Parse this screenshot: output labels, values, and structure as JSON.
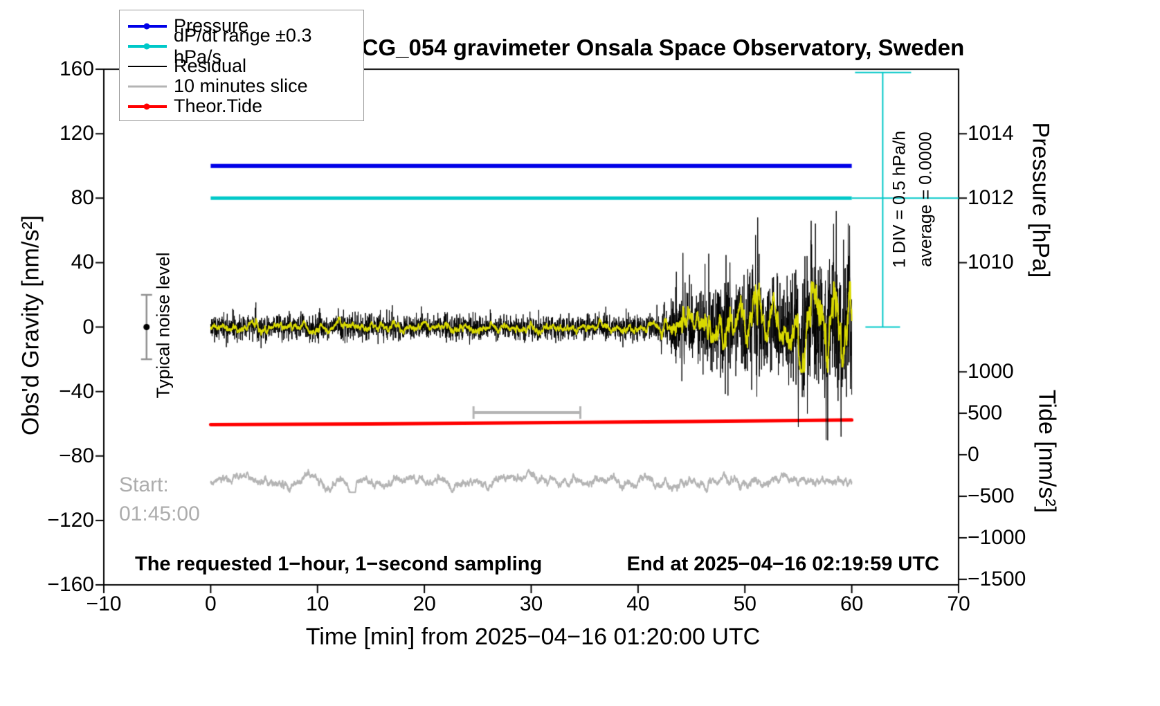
{
  "title": "SCG_054 gravimeter Onsala Space Observatory, Sweden",
  "legend": {
    "items": [
      {
        "label": "Pressure",
        "color": "#0000e8",
        "marker": true,
        "line_width": 4
      },
      {
        "label": "dP/dt range ±0.3 hPa/s",
        "color": "#00c8c8",
        "marker": true,
        "line_width": 4
      },
      {
        "label": "Residual",
        "color": "#000000",
        "marker": false,
        "line_width": 2
      },
      {
        "label": "10 minutes slice",
        "color": "#b4b4b4",
        "marker": false,
        "line_width": 3
      },
      {
        "label": "Theor.Tide",
        "color": "#ff0000",
        "marker": true,
        "line_width": 4
      }
    ]
  },
  "axes": {
    "x": {
      "label": "Time [min] from 2025−04−16 01:20:00 UTC",
      "min": -10,
      "max": 70,
      "ticks": [
        {
          "v": -10,
          "label": "−10"
        },
        {
          "v": 0,
          "label": "0"
        },
        {
          "v": 10,
          "label": "10"
        },
        {
          "v": 20,
          "label": "20"
        },
        {
          "v": 30,
          "label": "30"
        },
        {
          "v": 40,
          "label": "40"
        },
        {
          "v": 50,
          "label": "50"
        },
        {
          "v": 60,
          "label": "60"
        },
        {
          "v": 70,
          "label": "70"
        }
      ]
    },
    "y_gravity": {
      "label": "Obs'd Gravity [nm/s²]",
      "min": -160,
      "max": 160,
      "ticks": [
        {
          "v": 160,
          "label": "160"
        },
        {
          "v": 120,
          "label": "120"
        },
        {
          "v": 80,
          "label": "80"
        },
        {
          "v": 40,
          "label": "40"
        },
        {
          "v": 0,
          "label": "0"
        },
        {
          "v": -40,
          "label": "−40"
        },
        {
          "v": -80,
          "label": "−80"
        },
        {
          "v": -120,
          "label": "−120"
        },
        {
          "v": -160,
          "label": "−160"
        }
      ]
    },
    "y_pressure": {
      "label": "Pressure [hPa]",
      "anchor_hpa": 1012,
      "anchor_gravity": 80,
      "gravity_per_hpa": 20,
      "ticks": [
        {
          "v": 1014,
          "label": "1014"
        },
        {
          "v": 1012,
          "label": "1012"
        },
        {
          "v": 1010,
          "label": "1010"
        }
      ]
    },
    "y_tide": {
      "label": "Tide [nm/s²]",
      "anchor_tide": 0,
      "anchor_gravity": -79.3,
      "gravity_per_unit": 0.05154,
      "ticks": [
        {
          "v": 1000,
          "label": "1000"
        },
        {
          "v": 500,
          "label": "500"
        },
        {
          "v": 0,
          "label": "0"
        },
        {
          "v": -500,
          "label": "−500"
        },
        {
          "v": -1000,
          "label": "−1000"
        },
        {
          "v": -1500,
          "label": "−1500"
        }
      ]
    }
  },
  "annotations": {
    "typical_noise_level": "Typical noise level",
    "start_label": "Start:",
    "start_time": "01:45:00",
    "bottom_left": "The requested 1−hour, 1−second sampling",
    "bottom_right": "End at 2025−04−16 02:19:59 UTC",
    "div_scale": "1 DIV = 0.5 hPa/h",
    "average": "average = 0.0000"
  },
  "chart_data": {
    "type": "line",
    "title": "SCG_054 gravimeter Onsala Space Observatory, Sweden",
    "x": {
      "label": "Time [min] from 2025−04−16 01:20:00 UTC",
      "range": [
        -10,
        70
      ],
      "series_span_min": [
        0,
        60
      ],
      "sampling_seconds": 1
    },
    "y_gravity_range": [
      -160,
      160
    ],
    "grid": false,
    "legend_position": "top-left",
    "series": [
      {
        "name": "Pressure",
        "color": "#0000e8",
        "type": "constant",
        "gravity_level": 100,
        "pressure_hpa": 1013.0,
        "x_span": [
          0,
          60
        ],
        "width": 6
      },
      {
        "name": "dP/dt range ±0.3 hPa/s",
        "color": "#00c8c8",
        "type": "constant",
        "gravity_level": 80,
        "pressure_hpa": 1012.0,
        "x_span": [
          0,
          60
        ],
        "width": 5
      },
      {
        "name": "Residual",
        "color": "#000000",
        "type": "noise",
        "mean": 0,
        "width": 1,
        "sigma_envelope": [
          [
            0,
            3.8
          ],
          [
            41.5,
            3.8
          ],
          [
            43,
            7
          ],
          [
            44,
            16
          ],
          [
            45,
            13
          ],
          [
            46,
            12
          ],
          [
            47,
            15
          ],
          [
            48.5,
            16
          ],
          [
            50,
            14
          ],
          [
            51,
            18
          ],
          [
            52,
            15
          ],
          [
            54,
            16
          ],
          [
            55,
            20
          ],
          [
            56,
            22
          ],
          [
            57,
            22
          ],
          [
            58,
            24
          ],
          [
            59,
            23
          ],
          [
            60,
            22
          ]
        ],
        "notable_spikes": [
          [
            44.2,
            46
          ],
          [
            48.6,
            40
          ],
          [
            51.2,
            68
          ],
          [
            55.0,
            -62
          ],
          [
            56.2,
            66
          ],
          [
            57.6,
            -70
          ],
          [
            58.3,
            64
          ],
          [
            59.0,
            -68
          ],
          [
            59.8,
            63
          ]
        ]
      },
      {
        "name": "Smoothed residual",
        "color": "#d9d900",
        "type": "smoothed-noise",
        "width": 2,
        "gain": 2.6
      },
      {
        "name": "Theor.Tide",
        "color": "#ff0000",
        "type": "polyline",
        "width": 5,
        "points_gravity": [
          [
            0,
            -60.6
          ],
          [
            15,
            -60.1
          ],
          [
            30,
            -59.4
          ],
          [
            45,
            -58.6
          ],
          [
            60,
            -57.7
          ]
        ],
        "tide_right_axis_values": [
          360,
          420
        ]
      },
      {
        "name": "10 minutes slice",
        "color": "#b4b4b4",
        "type": "smooth-wiggle",
        "baseline_gravity": -95.5,
        "sigma": 2.3,
        "x_span": [
          0,
          60
        ],
        "width": 2
      }
    ],
    "markers": {
      "typical_noise_level_bar": {
        "x_min": -6.0,
        "gravity_span": [
          -20,
          20
        ],
        "dot_at": 0,
        "color": "#919191"
      },
      "slice_duration_bar": {
        "x_span": [
          24.6,
          34.6
        ],
        "gravity_level": -53,
        "color": "#b4b4b4"
      },
      "div_scale_bar": {
        "x_min": 62.9,
        "gravity_span": [
          0,
          158
        ],
        "color": "#00c8c8"
      },
      "cyan_extension_line": {
        "gravity_level": 80,
        "x_span": [
          60,
          70
        ],
        "color": "#00c8c8"
      }
    }
  }
}
